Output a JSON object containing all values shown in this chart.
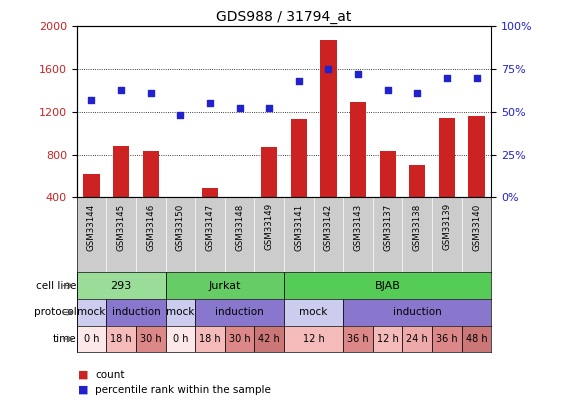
{
  "title": "GDS988 / 31794_at",
  "samples": [
    "GSM33144",
    "GSM33145",
    "GSM33146",
    "GSM33150",
    "GSM33147",
    "GSM33148",
    "GSM33149",
    "GSM33141",
    "GSM33142",
    "GSM33143",
    "GSM33137",
    "GSM33138",
    "GSM33139",
    "GSM33140"
  ],
  "counts": [
    620,
    880,
    830,
    320,
    490,
    310,
    870,
    1130,
    1870,
    1290,
    830,
    700,
    1140,
    1160
  ],
  "percentile": [
    57,
    63,
    61,
    48,
    55,
    52,
    52,
    68,
    75,
    72,
    63,
    61,
    70,
    70
  ],
  "bar_color": "#cc2222",
  "dot_color": "#2222cc",
  "ylim_left": [
    400,
    2000
  ],
  "ylim_right": [
    0,
    100
  ],
  "yticks_left": [
    400,
    800,
    1200,
    1600,
    2000
  ],
  "yticks_right": [
    0,
    25,
    50,
    75,
    100
  ],
  "cell_line_groups": [
    {
      "label": "293",
      "start": 0,
      "end": 3,
      "color": "#99dd99"
    },
    {
      "label": "Jurkat",
      "start": 3,
      "end": 7,
      "color": "#66cc66"
    },
    {
      "label": "BJAB",
      "start": 7,
      "end": 14,
      "color": "#55cc55"
    }
  ],
  "protocol_groups": [
    {
      "label": "mock",
      "start": 0,
      "end": 1,
      "color": "#ccccee"
    },
    {
      "label": "induction",
      "start": 1,
      "end": 3,
      "color": "#8877cc"
    },
    {
      "label": "mock",
      "start": 3,
      "end": 4,
      "color": "#ccccee"
    },
    {
      "label": "induction",
      "start": 4,
      "end": 7,
      "color": "#8877cc"
    },
    {
      "label": "mock",
      "start": 7,
      "end": 9,
      "color": "#ccccee"
    },
    {
      "label": "induction",
      "start": 9,
      "end": 14,
      "color": "#8877cc"
    }
  ],
  "time_groups": [
    {
      "label": "0 h",
      "start": 0,
      "end": 1,
      "color": "#fce8e8"
    },
    {
      "label": "18 h",
      "start": 1,
      "end": 2,
      "color": "#f5bbbb"
    },
    {
      "label": "30 h",
      "start": 2,
      "end": 3,
      "color": "#dd8888"
    },
    {
      "label": "0 h",
      "start": 3,
      "end": 4,
      "color": "#fce8e8"
    },
    {
      "label": "18 h",
      "start": 4,
      "end": 5,
      "color": "#f5bbbb"
    },
    {
      "label": "30 h",
      "start": 5,
      "end": 6,
      "color": "#dd8888"
    },
    {
      "label": "42 h",
      "start": 6,
      "end": 7,
      "color": "#cc7777"
    },
    {
      "label": "12 h",
      "start": 7,
      "end": 9,
      "color": "#f5bbbb"
    },
    {
      "label": "36 h",
      "start": 9,
      "end": 10,
      "color": "#dd8888"
    },
    {
      "label": "12 h",
      "start": 10,
      "end": 11,
      "color": "#f5bbbb"
    },
    {
      "label": "24 h",
      "start": 11,
      "end": 12,
      "color": "#eeaaaa"
    },
    {
      "label": "36 h",
      "start": 12,
      "end": 13,
      "color": "#dd8888"
    },
    {
      "label": "48 h",
      "start": 13,
      "end": 14,
      "color": "#cc7777"
    }
  ],
  "row_labels": [
    "cell line",
    "protocol",
    "time"
  ],
  "legend_items": [
    {
      "label": "count",
      "color": "#cc2222"
    },
    {
      "label": "percentile rank within the sample",
      "color": "#2222cc"
    }
  ],
  "bg_color": "#ffffff",
  "xtick_bg": "#cccccc",
  "grid_color": "#000000"
}
